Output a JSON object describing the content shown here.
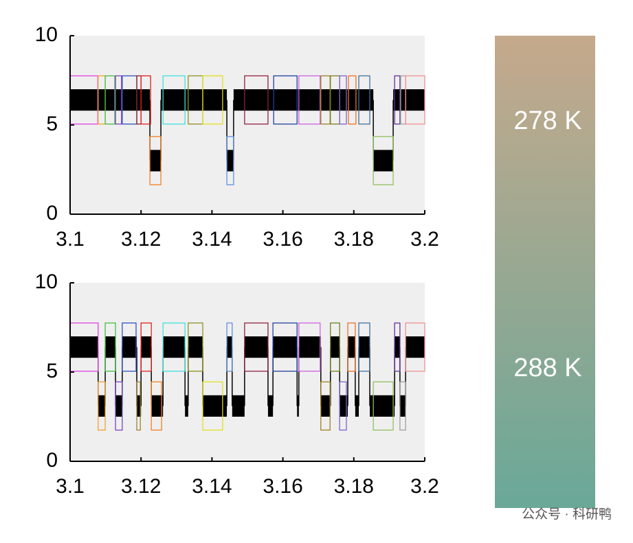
{
  "chart_data": [
    {
      "type": "trace",
      "xlim": [
        3.1,
        3.2
      ],
      "ylim": [
        0,
        10
      ],
      "xticks": [
        3.1,
        3.12,
        3.14,
        3.16,
        3.18,
        3.2
      ],
      "yticks": [
        0,
        5,
        10
      ],
      "noise_amplitude": 0.6,
      "box_half_height": 1.35,
      "trace": [
        {
          "start": 3.1,
          "end": 3.1225,
          "value": 6.4
        },
        {
          "start": 3.1225,
          "end": 3.1256,
          "value": 3.0
        },
        {
          "start": 3.1256,
          "end": 3.1442,
          "value": 6.4
        },
        {
          "start": 3.1442,
          "end": 3.1461,
          "value": 3.0
        },
        {
          "start": 3.1461,
          "end": 3.1855,
          "value": 6.4
        },
        {
          "start": 3.1855,
          "end": 3.1911,
          "value": 3.0
        },
        {
          "start": 3.1911,
          "end": 3.2,
          "value": 6.4
        }
      ],
      "boxes": [
        {
          "start": 3.1,
          "end": 3.1078,
          "value": 6.4,
          "color": "#e040e0"
        },
        {
          "start": 3.1079,
          "end": 3.1099,
          "value": 6.4,
          "color": "#f0a030"
        },
        {
          "start": 3.1099,
          "end": 3.1126,
          "value": 6.4,
          "color": "#40c040"
        },
        {
          "start": 3.1128,
          "end": 3.1145,
          "value": 6.4,
          "color": "#8040c0"
        },
        {
          "start": 3.1147,
          "end": 3.1188,
          "value": 6.4,
          "color": "#3050c0"
        },
        {
          "start": 3.1188,
          "end": 3.12,
          "value": 6.4,
          "color": "#902020"
        },
        {
          "start": 3.12,
          "end": 3.1227,
          "value": 6.4,
          "color": "#e02020"
        },
        {
          "start": 3.1225,
          "end": 3.1256,
          "value": 3.0,
          "color": "#f08020"
        },
        {
          "start": 3.1262,
          "end": 3.1324,
          "value": 6.4,
          "color": "#40e0e0"
        },
        {
          "start": 3.1333,
          "end": 3.1374,
          "value": 6.4,
          "color": "#909020"
        },
        {
          "start": 3.1374,
          "end": 3.143,
          "value": 6.4,
          "color": "#e0e020"
        },
        {
          "start": 3.1442,
          "end": 3.1461,
          "value": 3.0,
          "color": "#6090e0"
        },
        {
          "start": 3.1492,
          "end": 3.1558,
          "value": 6.4,
          "color": "#902040"
        },
        {
          "start": 3.1574,
          "end": 3.164,
          "value": 6.4,
          "color": "#2040a0"
        },
        {
          "start": 3.1645,
          "end": 3.1705,
          "value": 6.4,
          "color": "#d060e0"
        },
        {
          "start": 3.1707,
          "end": 3.1733,
          "value": 6.4,
          "color": "#a08020"
        },
        {
          "start": 3.1734,
          "end": 3.176,
          "value": 6.4,
          "color": "#708020"
        },
        {
          "start": 3.176,
          "end": 3.1779,
          "value": 6.4,
          "color": "#8060d0"
        },
        {
          "start": 3.1785,
          "end": 3.1806,
          "value": 6.4,
          "color": "#f07020"
        },
        {
          "start": 3.1814,
          "end": 3.1845,
          "value": 6.4,
          "color": "#4070a0"
        },
        {
          "start": 3.1855,
          "end": 3.1911,
          "value": 3.0,
          "color": "#90c060"
        },
        {
          "start": 3.1915,
          "end": 3.193,
          "value": 6.4,
          "color": "#6030a0"
        },
        {
          "start": 3.1932,
          "end": 3.1946,
          "value": 6.4,
          "color": "#a0a0a0"
        },
        {
          "start": 3.1946,
          "end": 3.2,
          "value": 6.4,
          "color": "#f09090"
        }
      ]
    },
    {
      "type": "trace",
      "xlim": [
        3.1,
        3.2
      ],
      "ylim": [
        0,
        10
      ],
      "xticks": [
        3.1,
        3.12,
        3.14,
        3.16,
        3.18,
        3.2
      ],
      "yticks": [
        0,
        5,
        10
      ],
      "noise_amplitude": 0.6,
      "box_half_height": 1.35,
      "trace": [
        {
          "start": 3.1,
          "end": 3.1079,
          "value": 6.4
        },
        {
          "start": 3.1079,
          "end": 3.1099,
          "value": 3.1
        },
        {
          "start": 3.1099,
          "end": 3.1128,
          "value": 6.4
        },
        {
          "start": 3.1128,
          "end": 3.1147,
          "value": 3.1
        },
        {
          "start": 3.1147,
          "end": 3.1188,
          "value": 6.4
        },
        {
          "start": 3.1188,
          "end": 3.12,
          "value": 3.1
        },
        {
          "start": 3.12,
          "end": 3.1229,
          "value": 6.4
        },
        {
          "start": 3.1229,
          "end": 3.1262,
          "value": 3.1
        },
        {
          "start": 3.1262,
          "end": 3.1324,
          "value": 6.4
        },
        {
          "start": 3.1324,
          "end": 3.1333,
          "value": 3.1
        },
        {
          "start": 3.1333,
          "end": 3.1374,
          "value": 6.4
        },
        {
          "start": 3.1374,
          "end": 3.1442,
          "value": 3.1
        },
        {
          "start": 3.1442,
          "end": 3.1457,
          "value": 6.4
        },
        {
          "start": 3.1457,
          "end": 3.1492,
          "value": 3.1
        },
        {
          "start": 3.1492,
          "end": 3.1558,
          "value": 6.4
        },
        {
          "start": 3.1558,
          "end": 3.1572,
          "value": 3.1
        },
        {
          "start": 3.1572,
          "end": 3.164,
          "value": 6.4
        },
        {
          "start": 3.164,
          "end": 3.1645,
          "value": 3.1
        },
        {
          "start": 3.1645,
          "end": 3.1707,
          "value": 6.4
        },
        {
          "start": 3.1707,
          "end": 3.1734,
          "value": 3.1
        },
        {
          "start": 3.1734,
          "end": 3.176,
          "value": 6.4
        },
        {
          "start": 3.176,
          "end": 3.1783,
          "value": 3.1
        },
        {
          "start": 3.1783,
          "end": 3.1804,
          "value": 6.4
        },
        {
          "start": 3.1804,
          "end": 3.1814,
          "value": 3.1
        },
        {
          "start": 3.1814,
          "end": 3.1845,
          "value": 6.4
        },
        {
          "start": 3.1845,
          "end": 3.1915,
          "value": 3.1
        },
        {
          "start": 3.1915,
          "end": 3.193,
          "value": 6.4
        },
        {
          "start": 3.193,
          "end": 3.1946,
          "value": 3.1
        },
        {
          "start": 3.1946,
          "end": 3.2,
          "value": 6.4
        }
      ],
      "boxes": [
        {
          "start": 3.1,
          "end": 3.1079,
          "value": 6.4,
          "color": "#e040e0"
        },
        {
          "start": 3.1079,
          "end": 3.1099,
          "value": 3.1,
          "color": "#f0a030"
        },
        {
          "start": 3.1099,
          "end": 3.1128,
          "value": 6.4,
          "color": "#40c040"
        },
        {
          "start": 3.1128,
          "end": 3.1147,
          "value": 3.1,
          "color": "#8040c0"
        },
        {
          "start": 3.1147,
          "end": 3.1186,
          "value": 6.4,
          "color": "#3050c0"
        },
        {
          "start": 3.1188,
          "end": 3.1198,
          "value": 3.1,
          "color": "#a08030"
        },
        {
          "start": 3.12,
          "end": 3.1229,
          "value": 6.4,
          "color": "#e02020"
        },
        {
          "start": 3.1229,
          "end": 3.1258,
          "value": 3.1,
          "color": "#f08020"
        },
        {
          "start": 3.1262,
          "end": 3.1324,
          "value": 6.4,
          "color": "#40e0e0"
        },
        {
          "start": 3.1333,
          "end": 3.1374,
          "value": 6.4,
          "color": "#909020"
        },
        {
          "start": 3.1374,
          "end": 3.143,
          "value": 3.1,
          "color": "#e0e020"
        },
        {
          "start": 3.1442,
          "end": 3.1457,
          "value": 6.4,
          "color": "#6090e0"
        },
        {
          "start": 3.1492,
          "end": 3.1558,
          "value": 6.4,
          "color": "#902040"
        },
        {
          "start": 3.1572,
          "end": 3.164,
          "value": 6.4,
          "color": "#2040a0"
        },
        {
          "start": 3.1645,
          "end": 3.1705,
          "value": 6.4,
          "color": "#d060e0"
        },
        {
          "start": 3.1707,
          "end": 3.1733,
          "value": 3.1,
          "color": "#a08020"
        },
        {
          "start": 3.1734,
          "end": 3.176,
          "value": 6.4,
          "color": "#708020"
        },
        {
          "start": 3.176,
          "end": 3.1779,
          "value": 3.1,
          "color": "#8060d0"
        },
        {
          "start": 3.1783,
          "end": 3.1804,
          "value": 6.4,
          "color": "#f07020"
        },
        {
          "start": 3.1814,
          "end": 3.1845,
          "value": 6.4,
          "color": "#4070a0"
        },
        {
          "start": 3.1855,
          "end": 3.1911,
          "value": 3.1,
          "color": "#90c060"
        },
        {
          "start": 3.1915,
          "end": 3.193,
          "value": 6.4,
          "color": "#6030a0"
        },
        {
          "start": 3.193,
          "end": 3.1946,
          "value": 3.1,
          "color": "#a0a0a0"
        },
        {
          "start": 3.1946,
          "end": 3.2,
          "value": 6.4,
          "color": "#f09090"
        }
      ]
    }
  ],
  "colorbar": {
    "labels": [
      "278 K",
      "288 K"
    ],
    "colors": [
      "#c5a98c",
      "#6aa898"
    ]
  },
  "watermark": "公众号 · 科研鸭"
}
